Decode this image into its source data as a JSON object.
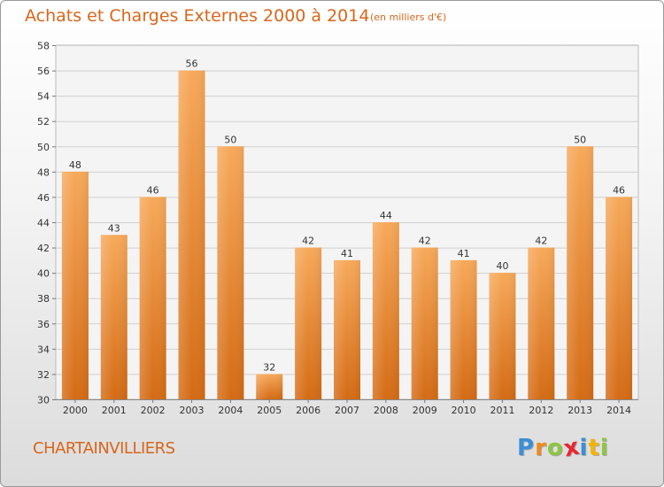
{
  "chart_data": {
    "type": "bar",
    "title": "Achats et Charges Externes 2000 à 2014",
    "subtitle": "(en milliers d'€)",
    "categories": [
      "2000",
      "2001",
      "2002",
      "2003",
      "2004",
      "2005",
      "2006",
      "2007",
      "2008",
      "2009",
      "2010",
      "2011",
      "2012",
      "2013",
      "2014"
    ],
    "values": [
      48,
      43,
      46,
      56,
      50,
      32,
      42,
      41,
      44,
      42,
      41,
      40,
      42,
      50,
      46
    ],
    "ylim": [
      30,
      58
    ],
    "yticks": [
      "30",
      "32",
      "34",
      "36",
      "38",
      "40",
      "42",
      "44",
      "46",
      "48",
      "50",
      "52",
      "54",
      "56",
      "58"
    ],
    "grid": true,
    "colors": {
      "bar_light": "#f7a95a",
      "bar_dark": "#d46b14",
      "text": "#d9661a"
    }
  },
  "footer": {
    "commune": "CHARTAINVILLIERS",
    "logo_letters": [
      "P",
      "r",
      "o",
      "x",
      "i",
      "t",
      "i"
    ],
    "logo_colors": [
      "#3b8fd6",
      "#f08a1c",
      "#8cc63f",
      "#e8262c",
      "#3b8fd6",
      "#f5b400",
      "#8cc63f"
    ]
  }
}
